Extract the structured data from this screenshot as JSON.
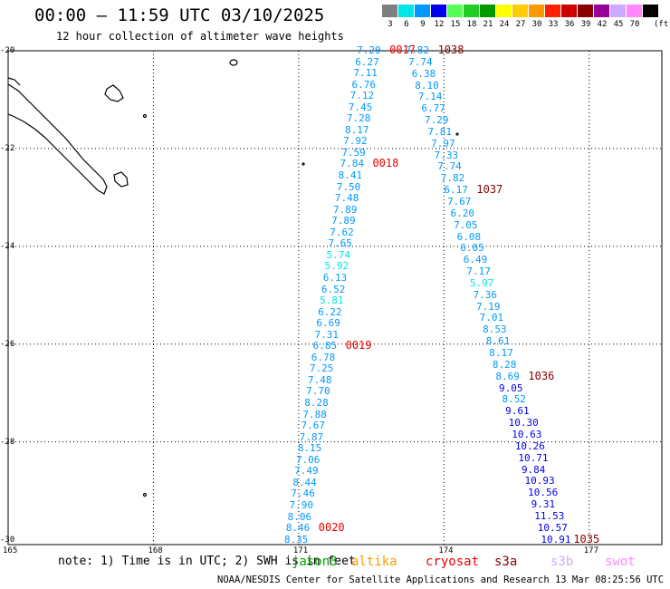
{
  "title": "00:00 – 11:59 UTC 03/10/2025",
  "subtitle": "12 hour collection of altimeter wave heights",
  "colorbar": {
    "unit": "(ft)",
    "bins": [
      {
        "label": "3",
        "color": "#7f7f7f"
      },
      {
        "label": "6",
        "color": "#00e5e5"
      },
      {
        "label": "9",
        "color": "#0099ff"
      },
      {
        "label": "12",
        "color": "#0000ee"
      },
      {
        "label": "15",
        "color": "#55ff55"
      },
      {
        "label": "18",
        "color": "#22cc22"
      },
      {
        "label": "21",
        "color": "#009900"
      },
      {
        "label": "24",
        "color": "#ffff00"
      },
      {
        "label": "27",
        "color": "#ffcc00"
      },
      {
        "label": "30",
        "color": "#ff9900"
      },
      {
        "label": "33",
        "color": "#ff2200"
      },
      {
        "label": "36",
        "color": "#cc0000"
      },
      {
        "label": "39",
        "color": "#880000"
      },
      {
        "label": "42",
        "color": "#990099"
      },
      {
        "label": "45",
        "color": "#ccaaff"
      },
      {
        "label": "70",
        "color": "#ff88ff"
      },
      {
        "label": "",
        "color": "#000000"
      }
    ]
  },
  "axes": {
    "lat_labels": [
      "-20",
      "-22",
      "-24",
      "-26",
      "-28",
      "-30"
    ],
    "lon_labels": [
      "165",
      "168",
      "171",
      "174",
      "177"
    ]
  },
  "tracks": [
    {
      "name": "west-track",
      "lat_start": -20.0,
      "lat_end": -30.0,
      "lon_start": 172.5,
      "lon_end": 171.0,
      "values": [
        "7.20",
        "6.27",
        "7.11",
        "6.76",
        "7.12",
        "7.45",
        "7.28",
        "8.17",
        "7.92",
        "7.59",
        "7.84",
        "8.41",
        "7.50",
        "7.48",
        "7.89",
        "7.89",
        "7.62",
        "7.65",
        "5.74",
        "5.92",
        "6.13",
        "6.52",
        "5.81",
        "6.22",
        "6.69",
        "7.31",
        "6.85",
        "6.78",
        "7.25",
        "7.48",
        "7.70",
        "8.28",
        "7.88",
        "7.67",
        "7.87",
        "8.15",
        "7.06",
        "7.49",
        "8.44",
        "7.46",
        "7.90",
        "8.06",
        "8.46",
        "8.35"
      ],
      "time_labels": [
        {
          "label": "0017",
          "color": "#ee0000",
          "index": 0
        },
        {
          "label": "0018",
          "color": "#ee0000",
          "index": 10
        },
        {
          "label": "0019",
          "color": "#ee0000",
          "index": 26
        },
        {
          "label": "0020",
          "color": "#ee0000",
          "index": 42
        }
      ]
    },
    {
      "name": "east-track",
      "lat_start": -20.0,
      "lat_end": -30.0,
      "lon_start": 173.5,
      "lon_end": 176.3,
      "values": [
        "7.82",
        "7.74",
        "6.38",
        "8.10",
        "7.14",
        "6.77",
        "7.29",
        "7.81",
        "7.97",
        "7.33",
        "7.74",
        "7.82",
        "6.17",
        "7.67",
        "6.20",
        "7.05",
        "6.08",
        "6.05",
        "6.49",
        "7.17",
        "5.97",
        "7.36",
        "7.19",
        "7.01",
        "8.53",
        "8.61",
        "8.17",
        "8.28",
        "8.69",
        "9.05",
        "8.52",
        "9.61",
        "10.30",
        "10.63",
        "10.26",
        "10.71",
        "9.84",
        "10.93",
        "10.56",
        "9.31",
        "11.53",
        "10.57",
        "10.91"
      ],
      "time_labels": [
        {
          "label": "1038",
          "color": "#880000",
          "index": 0
        },
        {
          "label": "1037",
          "color": "#880000",
          "index": 12
        },
        {
          "label": "1036",
          "color": "#880000",
          "index": 28
        },
        {
          "label": "1035",
          "color": "#880000",
          "index": 42
        }
      ]
    }
  ],
  "note": "note:  1) Time is in UTC;  2) SWH is in feet",
  "satellites": [
    {
      "name": "jason3",
      "color": "#00aa00"
    },
    {
      "name": "altika",
      "color": "#ff9900"
    },
    {
      "name": "cryosat",
      "color": "#ee0000"
    },
    {
      "name": "s3a",
      "color": "#880000"
    },
    {
      "name": "s3b",
      "color": "#ccaaff"
    },
    {
      "name": "swot",
      "color": "#ff88ff"
    }
  ],
  "footer": "NOAA/NESDIS Center for Satellite Applications and Research    13 Mar 08:25:56 UTC 2025"
}
